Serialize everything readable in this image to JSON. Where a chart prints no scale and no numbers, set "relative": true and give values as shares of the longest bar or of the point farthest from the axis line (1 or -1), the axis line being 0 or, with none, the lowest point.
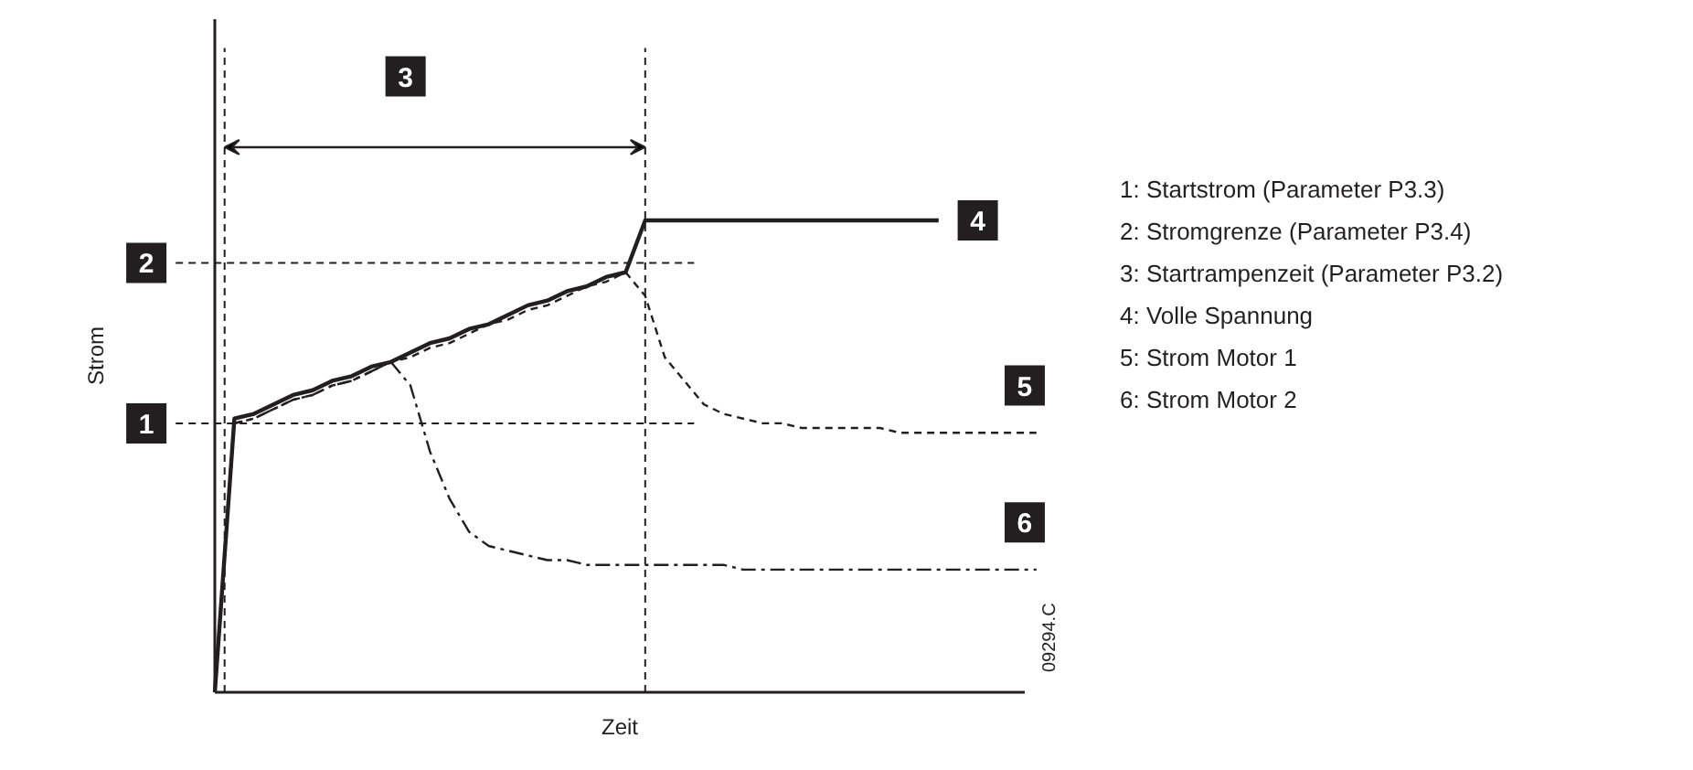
{
  "chart_data": {
    "type": "line",
    "relative": true,
    "xlabel": "Zeit",
    "ylabel": "Strom",
    "categories": [
      null,
      null,
      null,
      null,
      null,
      null,
      null,
      null,
      null,
      null,
      null,
      null,
      null,
      null,
      null,
      null,
      null,
      null,
      null,
      null,
      null,
      null,
      null,
      null,
      null,
      null,
      null,
      null,
      null,
      null,
      null,
      null,
      null,
      null,
      null,
      null,
      null,
      null,
      null,
      null,
      null,
      null,
      null
    ],
    "series": [
      {
        "name": "4",
        "color": "#231f20",
        "line_style": "solid",
        "values": [
          0,
          0.58,
          0.59,
          0.61,
          0.63,
          0.64,
          0.66,
          0.67,
          0.69,
          0.7,
          0.72,
          0.74,
          0.75,
          0.77,
          0.78,
          0.8,
          0.82,
          0.83,
          0.85,
          0.86,
          0.88,
          0.89,
          1,
          1,
          1,
          1,
          1,
          1,
          1,
          1,
          1,
          1,
          1,
          1,
          1,
          1,
          1,
          1,
          null,
          null,
          null,
          null,
          null
        ]
      },
      {
        "name": "5",
        "color": "#231f20",
        "line_style": "dashed",
        "values": [
          0,
          0.57,
          0.58,
          0.6,
          0.62,
          0.63,
          0.65,
          0.66,
          0.68,
          0.7,
          0.71,
          0.73,
          0.74,
          0.76,
          0.78,
          0.79,
          0.81,
          0.82,
          0.84,
          0.86,
          0.87,
          0.89,
          0.84,
          0.71,
          0.66,
          0.61,
          0.59,
          0.58,
          0.57,
          0.57,
          0.56,
          0.56,
          0.56,
          0.56,
          0.56,
          0.55,
          0.55,
          0.55,
          0.55,
          0.55,
          0.55,
          0.55,
          0.55
        ]
      },
      {
        "name": "6",
        "color": "#231f20",
        "line_style": "dashdot",
        "values": [
          0,
          0.57,
          0.58,
          0.6,
          0.62,
          0.63,
          0.65,
          0.66,
          0.68,
          0.7,
          0.65,
          0.51,
          0.41,
          0.34,
          0.31,
          0.3,
          0.29,
          0.28,
          0.28,
          0.27,
          0.27,
          0.27,
          0.27,
          0.27,
          0.27,
          0.27,
          0.27,
          0.26,
          0.26,
          0.26,
          0.26,
          0.26,
          0.26,
          0.26,
          0.26,
          0.26,
          0.26,
          0.26,
          0.26,
          0.26,
          0.26,
          0.26,
          0.26
        ]
      }
    ],
    "ref_lines": [
      {
        "axis": "y",
        "value": 0.57,
        "line_style": "dashed"
      },
      {
        "axis": "y",
        "value": 0.91,
        "line_style": "dashed"
      }
    ],
    "annotations": [
      "1: Startstrom (Parameter P3.3)",
      "2: Stromgrenze (Parameter P3.4)",
      "3: Startrampenzeit (Parameter P3.2)",
      "4: Volle Spannung",
      "5: Strom Motor 1",
      "6: Strom Motor 2",
      "09294.C",
      "3",
      "1",
      "2"
    ]
  }
}
